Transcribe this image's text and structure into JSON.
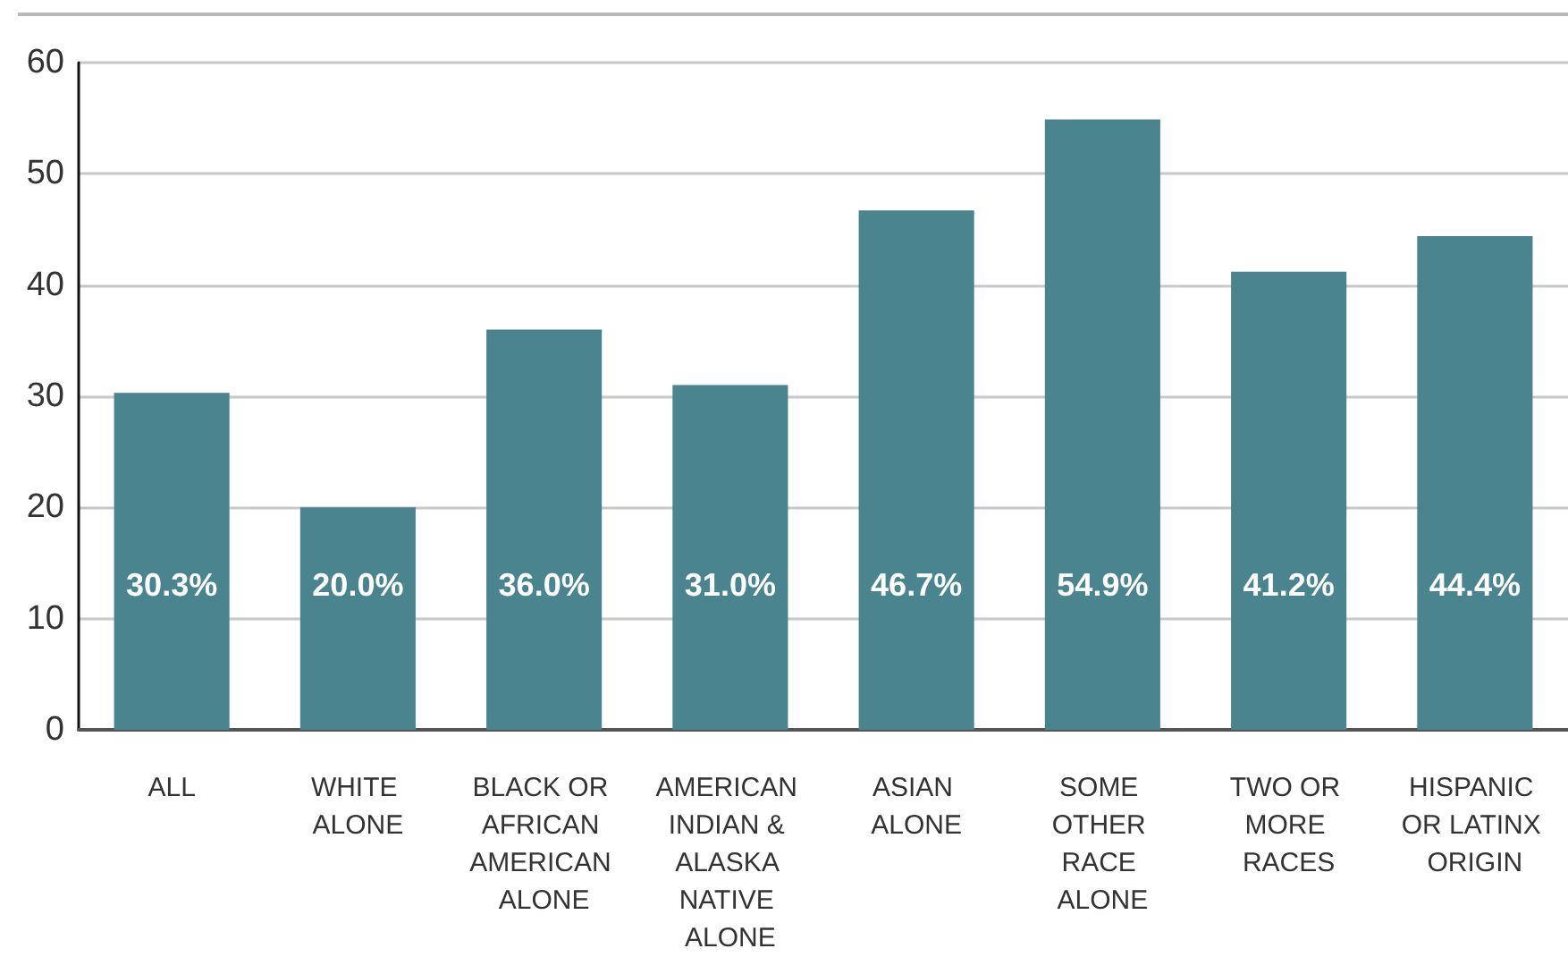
{
  "chart_data": {
    "type": "bar",
    "categories": [
      "ALL",
      "WHITE ALONE",
      "BLACK OR AFRICAN AMERICAN ALONE",
      "AMERICAN INDIAN & ALASKA NATIVE ALONE",
      "ASIAN ALONE",
      "SOME OTHER RACE ALONE",
      "TWO OR MORE RACES",
      "HISPANIC OR LATINX ORIGIN"
    ],
    "values": [
      30.3,
      20.0,
      36.0,
      31.0,
      46.7,
      54.9,
      41.2,
      44.4
    ],
    "value_labels": [
      "30.3%",
      "20.0%",
      "36.0%",
      "31.0%",
      "46.7%",
      "54.9%",
      "41.2%",
      "44.4%"
    ],
    "color": "#4a858f",
    "ylim": [
      0,
      60
    ],
    "yticks": [
      0,
      10,
      20,
      30,
      40,
      50,
      60
    ],
    "grid": "y"
  }
}
